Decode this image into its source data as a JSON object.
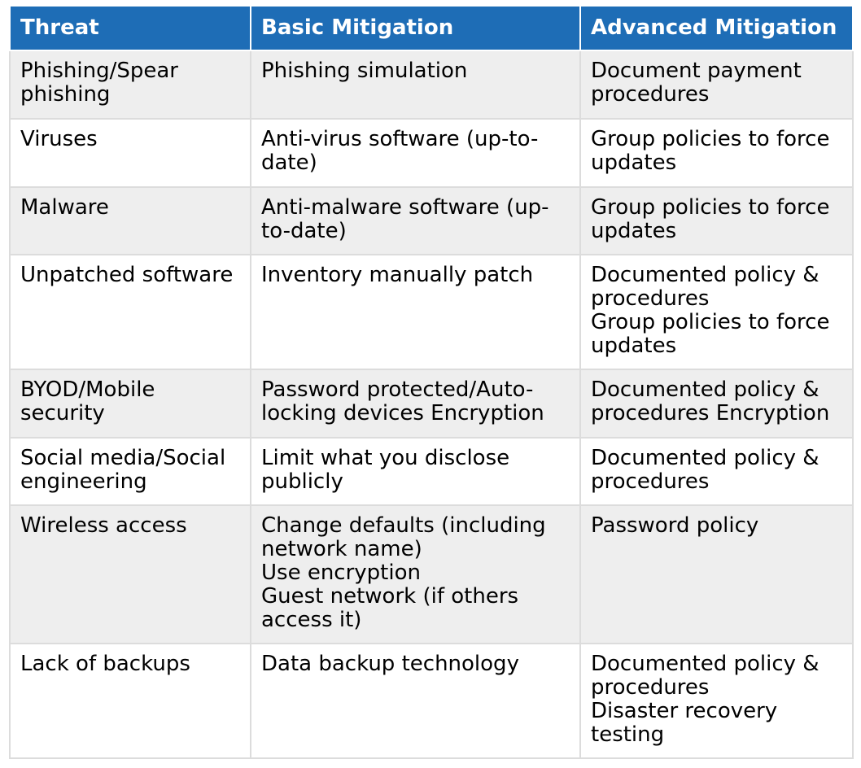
{
  "headers": [
    "Threat",
    "Basic Mitigation",
    "Advanced Mitigation"
  ],
  "rows": [
    {
      "threat": "Phishing/Spear phishing",
      "basic": [
        "Phishing simulation"
      ],
      "advanced": [
        "Document payment procedures"
      ]
    },
    {
      "threat": "Viruses",
      "basic": [
        "Anti-virus software (up-to-date)"
      ],
      "advanced": [
        "Group policies to force updates"
      ]
    },
    {
      "threat": "Malware",
      "basic": [
        "Anti-malware software (up-to-date)"
      ],
      "advanced": [
        "Group policies to force updates"
      ]
    },
    {
      "threat": "Unpatched software",
      "basic": [
        "Inventory manually patch"
      ],
      "advanced": [
        "Documented policy & procedures",
        "Group policies to force updates"
      ]
    },
    {
      "threat": "BYOD/Mobile security",
      "basic": [
        "Password protected/Auto-locking devices Encryption"
      ],
      "advanced": [
        "Documented policy & procedures Encryption"
      ]
    },
    {
      "threat": "Social media/Social engineering",
      "basic": [
        "Limit what you disclose publicly"
      ],
      "advanced": [
        "Documented policy & procedures"
      ]
    },
    {
      "threat": "Wireless access",
      "basic": [
        "Change defaults (including network name)",
        "Use encryption",
        "Guest network (if others access it)"
      ],
      "advanced": [
        "Password policy"
      ]
    },
    {
      "threat": "Lack of backups",
      "basic": [
        "Data backup technology"
      ],
      "advanced": [
        "Documented policy & procedures",
        "Disaster recovery testing"
      ]
    }
  ]
}
